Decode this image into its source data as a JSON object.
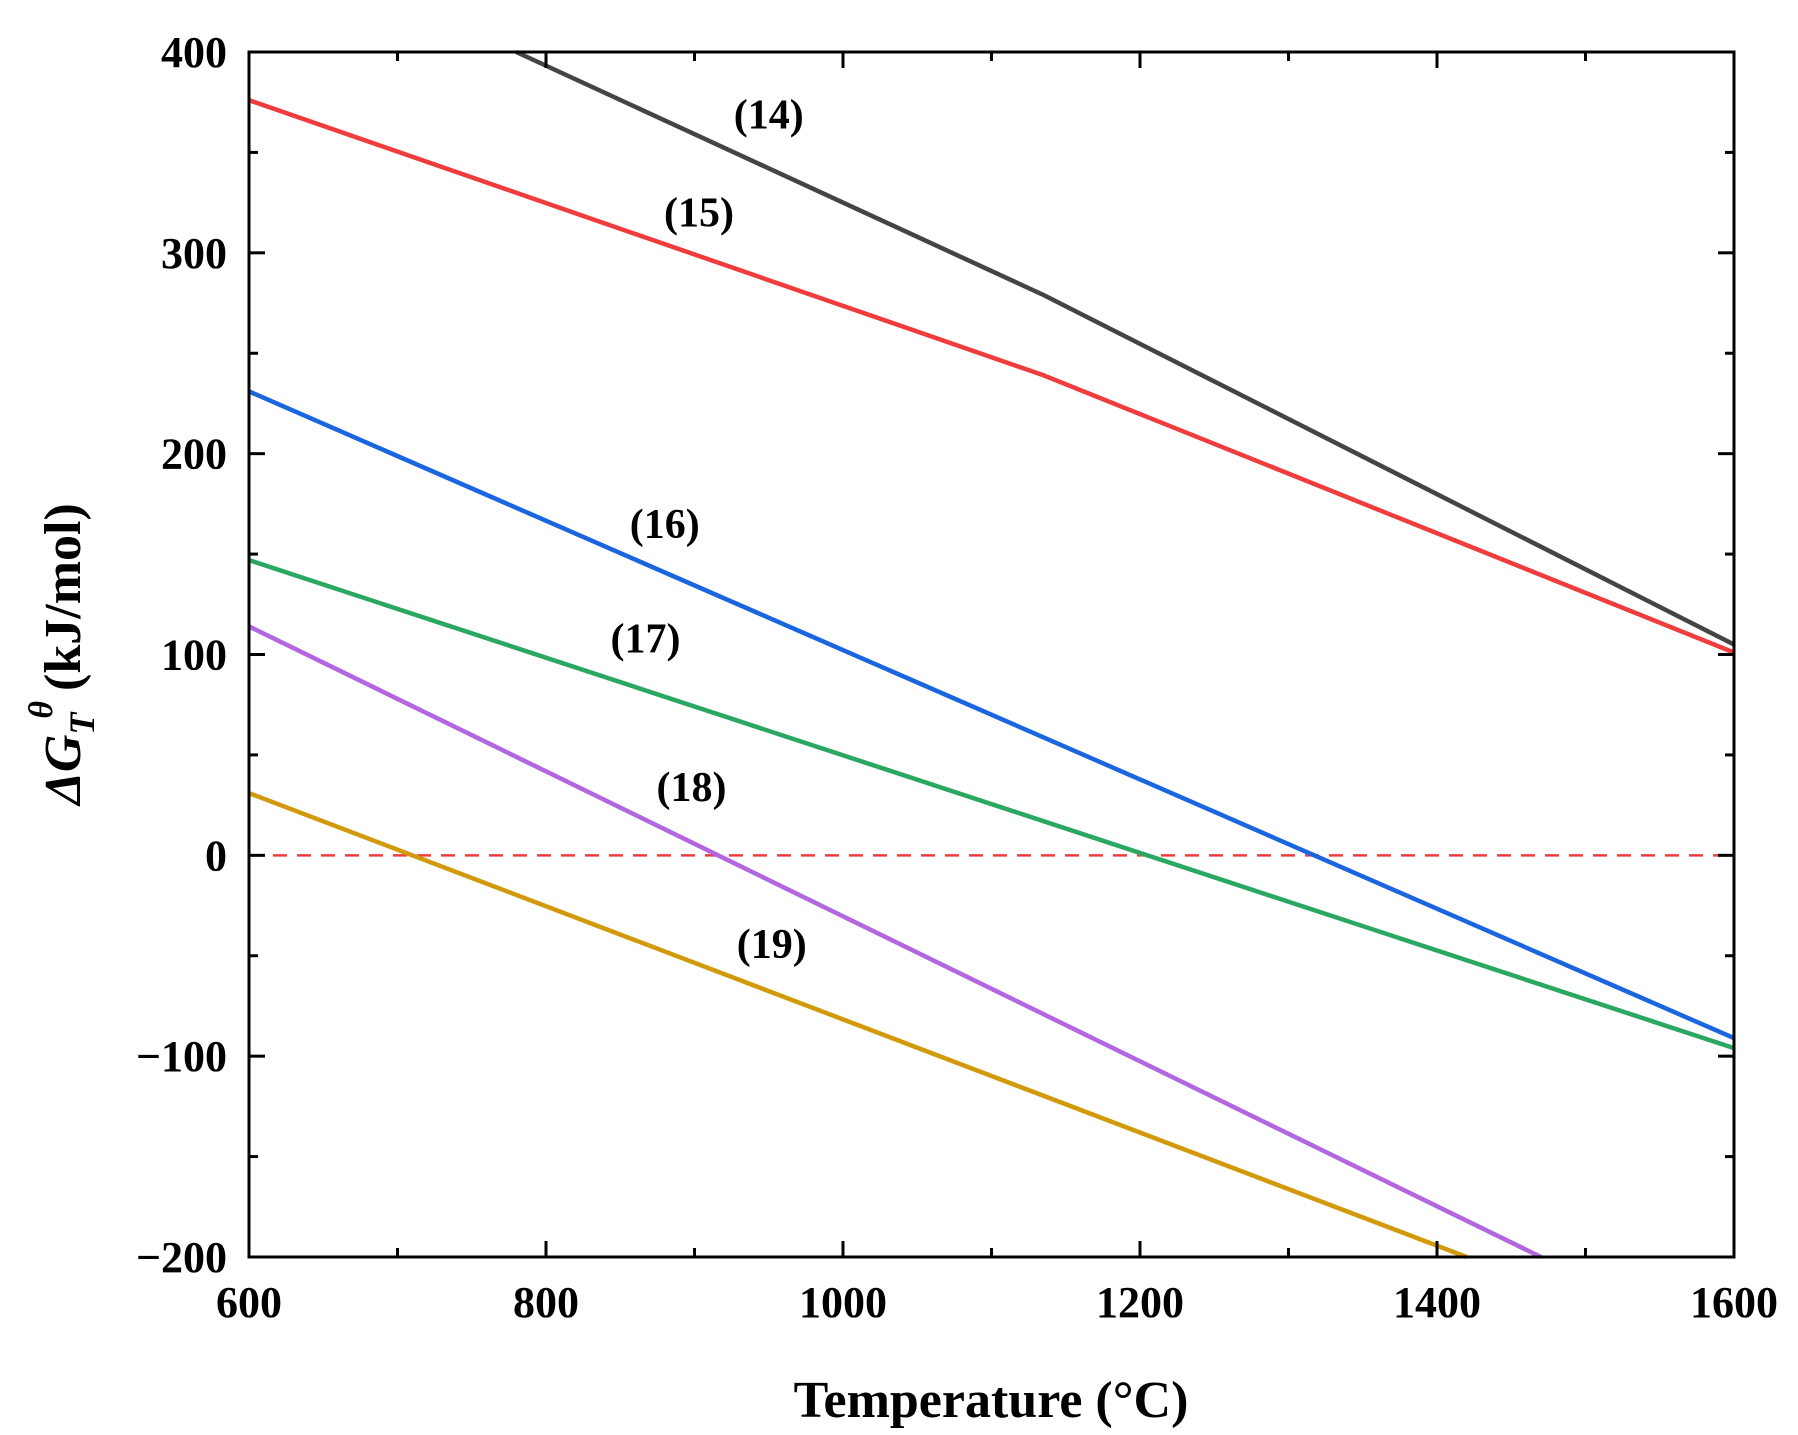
{
  "chart_data": {
    "type": "line",
    "title": "",
    "xlabel": "Temperature (°C)",
    "ylabel": {
      "prefix": "ΔG",
      "subscript": "T",
      "superscript": "θ",
      "unit": "(kJ/mol)"
    },
    "xlim": [
      600,
      1600
    ],
    "ylim": [
      -200,
      400
    ],
    "x_ticks": [
      600,
      800,
      1000,
      1200,
      1400,
      1600
    ],
    "x_tick_labels": [
      "600",
      "800",
      "1000",
      "1200",
      "1400",
      "1600"
    ],
    "y_ticks": [
      -200,
      -100,
      0,
      100,
      200,
      300,
      400
    ],
    "y_tick_labels": [
      "−200",
      "−100",
      "0",
      "100",
      "200",
      "300",
      "400"
    ],
    "grid": false,
    "series": [
      {
        "name": "(14)",
        "color": "#444444",
        "x": [
          780,
          1135,
          1600
        ],
        "y": [
          400,
          279,
          105
        ],
        "label_at": [
          950,
          362
        ]
      },
      {
        "name": "(15)",
        "color": "#f03c3c",
        "x": [
          600,
          1135,
          1600
        ],
        "y": [
          376,
          239,
          101
        ],
        "label_at": [
          903,
          313
        ]
      },
      {
        "name": "(16)",
        "color": "#1a66e0",
        "x": [
          600,
          1600
        ],
        "y": [
          231,
          -91
        ],
        "label_at": [
          880,
          158
        ]
      },
      {
        "name": "(17)",
        "color": "#2aa760",
        "x": [
          600,
          1600
        ],
        "y": [
          147,
          -96
        ],
        "label_at": [
          867,
          101
        ]
      },
      {
        "name": "(18)",
        "color": "#b266e0",
        "x": [
          600,
          1470
        ],
        "y": [
          114,
          -200
        ],
        "label_at": [
          898,
          27
        ]
      },
      {
        "name": "(19)",
        "color": "#d29a0a",
        "x": [
          600,
          1420
        ],
        "y": [
          31,
          -200
        ],
        "label_at": [
          952,
          -51
        ]
      }
    ],
    "reference_line": {
      "y": 0,
      "color": "#f03c3c",
      "style": "dashed"
    }
  }
}
